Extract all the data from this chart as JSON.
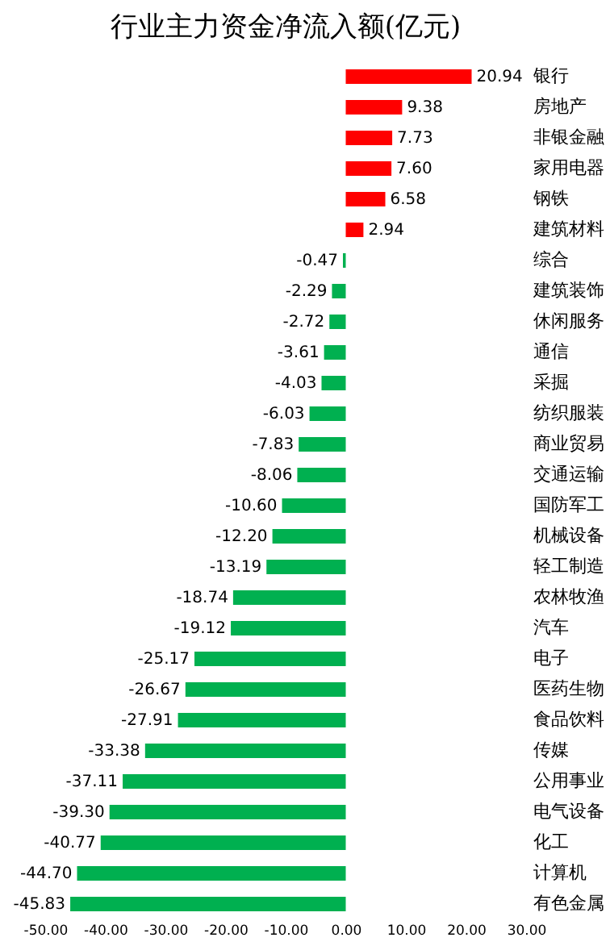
{
  "chart_data": {
    "type": "bar",
    "orientation": "horizontal",
    "title": "行业主力资金净流入额(亿元)",
    "categories": [
      "银行",
      "房地产",
      "非银金融",
      "家用电器",
      "钢铁",
      "建筑材料",
      "综合",
      "建筑装饰",
      "休闲服务",
      "通信",
      "采掘",
      "纺织服装",
      "商业贸易",
      "交通运输",
      "国防军工",
      "机械设备",
      "轻工制造",
      "农林牧渔",
      "汽车",
      "电子",
      "医药生物",
      "食品饮料",
      "传媒",
      "公用事业",
      "电气设备",
      "化工",
      "计算机",
      "有色金属"
    ],
    "values": [
      20.94,
      9.38,
      7.73,
      7.6,
      6.58,
      2.94,
      -0.47,
      -2.29,
      -2.72,
      -3.61,
      -4.03,
      -6.03,
      -7.83,
      -8.06,
      -10.6,
      -12.2,
      -13.19,
      -18.74,
      -19.12,
      -25.17,
      -26.67,
      -27.91,
      -33.38,
      -37.11,
      -39.3,
      -40.77,
      -44.7,
      -45.83
    ],
    "value_labels": [
      "20.94",
      "9.38",
      "7.73",
      "7.60",
      "6.58",
      "2.94",
      "-0.47",
      "-2.29",
      "-2.72",
      "-3.61",
      "-4.03",
      "-6.03",
      "-7.83",
      "-8.06",
      "-10.60",
      "-12.20",
      "-13.19",
      "-18.74",
      "-19.12",
      "-25.17",
      "-26.67",
      "-27.91",
      "-33.38",
      "-37.11",
      "-39.30",
      "-40.77",
      "-44.70",
      "-45.83"
    ],
    "colors": [
      "#ff0000",
      "#ff0000",
      "#ff0000",
      "#ff0000",
      "#ff0000",
      "#ff0000",
      "#00b050",
      "#00b050",
      "#00b050",
      "#00b050",
      "#00b050",
      "#00b050",
      "#00b050",
      "#00b050",
      "#00b050",
      "#00b050",
      "#00b050",
      "#00b050",
      "#00b050",
      "#00b050",
      "#00b050",
      "#00b050",
      "#00b050",
      "#00b050",
      "#00b050",
      "#00b050",
      "#00b050",
      "#00b050"
    ],
    "xlim": [
      -50,
      30
    ],
    "xticks": [
      {
        "value": -50,
        "label": "-50.00"
      },
      {
        "value": -40,
        "label": "-40.00"
      },
      {
        "value": -30,
        "label": "-30.00"
      },
      {
        "value": -20,
        "label": "-20.00"
      },
      {
        "value": -10,
        "label": "-10.00"
      },
      {
        "value": 0,
        "label": "0.00"
      },
      {
        "value": 10,
        "label": "10.00"
      },
      {
        "value": 20,
        "label": "20.00"
      },
      {
        "value": 30,
        "label": "30.00"
      }
    ],
    "grid": false
  }
}
